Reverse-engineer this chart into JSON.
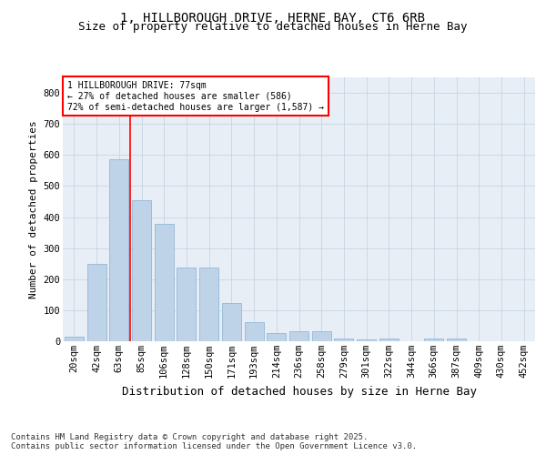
{
  "title_line1": "1, HILLBOROUGH DRIVE, HERNE BAY, CT6 6RB",
  "title_line2": "Size of property relative to detached houses in Herne Bay",
  "xlabel": "Distribution of detached houses by size in Herne Bay",
  "ylabel": "Number of detached properties",
  "bar_labels": [
    "20sqm",
    "42sqm",
    "63sqm",
    "85sqm",
    "106sqm",
    "128sqm",
    "150sqm",
    "171sqm",
    "193sqm",
    "214sqm",
    "236sqm",
    "258sqm",
    "279sqm",
    "301sqm",
    "322sqm",
    "344sqm",
    "366sqm",
    "387sqm",
    "409sqm",
    "430sqm",
    "452sqm"
  ],
  "bar_values": [
    15,
    248,
    586,
    455,
    378,
    238,
    238,
    122,
    63,
    25,
    33,
    33,
    10,
    5,
    10,
    0,
    8,
    8,
    0,
    0,
    0
  ],
  "bar_color": "#bed3e8",
  "bar_edge_color": "#92b8d8",
  "background_color": "#e8eef6",
  "vline_color": "red",
  "annotation_text": "1 HILLBOROUGH DRIVE: 77sqm\n← 27% of detached houses are smaller (586)\n72% of semi-detached houses are larger (1,587) →",
  "annotation_box_facecolor": "white",
  "annotation_box_edgecolor": "red",
  "ylim": [
    0,
    850
  ],
  "yticks": [
    0,
    100,
    200,
    300,
    400,
    500,
    600,
    700,
    800
  ],
  "footer_text": "Contains HM Land Registry data © Crown copyright and database right 2025.\nContains public sector information licensed under the Open Government Licence v3.0.",
  "grid_color": "#c8d4e4",
  "title_fontsize": 10,
  "subtitle_fontsize": 9,
  "xlabel_fontsize": 9,
  "ylabel_fontsize": 8,
  "tick_fontsize": 7.5,
  "annotation_fontsize": 7,
  "footer_fontsize": 6.5
}
